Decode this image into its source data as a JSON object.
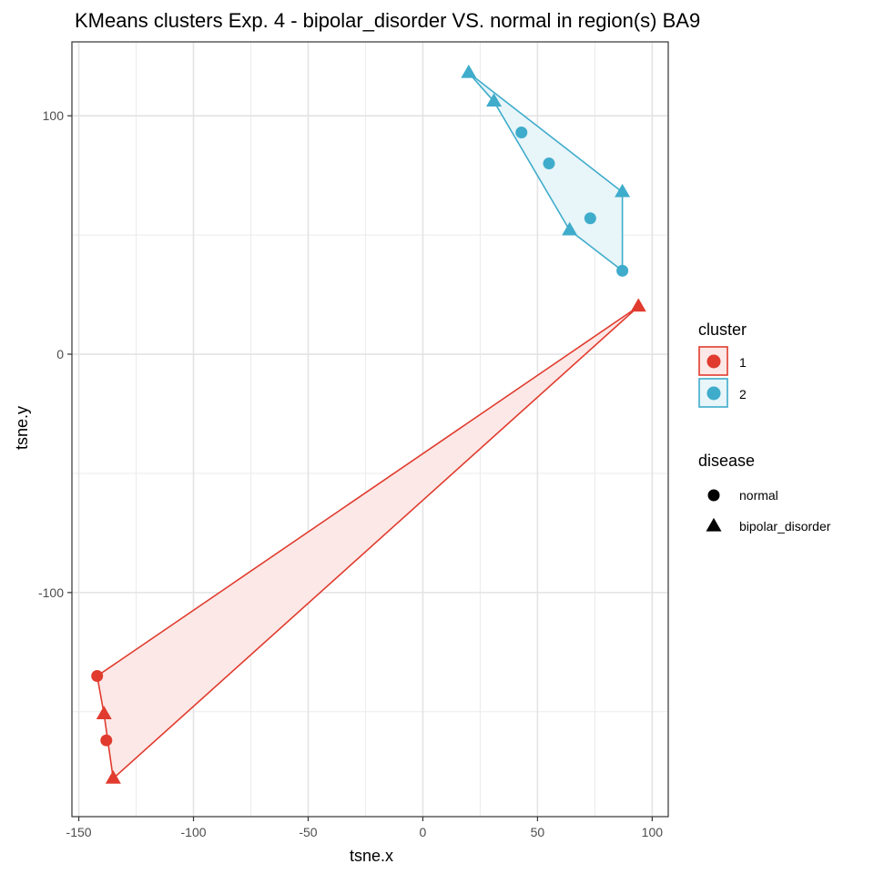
{
  "chart_data": {
    "type": "scatter",
    "title": "KMeans clusters Exp. 4 - bipolar_disorder VS. normal in region(s) BA9",
    "xlabel": "tsne.x",
    "ylabel": "tsne.y",
    "xlim": [
      -153,
      107
    ],
    "ylim": [
      -194,
      131
    ],
    "xticks": [
      -150,
      -100,
      -50,
      0,
      50,
      100
    ],
    "xtick_labels": [
      "-150",
      "-100",
      "-50",
      "0",
      "50",
      "100"
    ],
    "yticks": [
      -100,
      0,
      100
    ],
    "ytick_labels": [
      "-100",
      "0",
      "100"
    ],
    "grid": true,
    "legend_position": "right",
    "clusters": [
      {
        "name": "1",
        "color": "#E03B2E",
        "fill": "#FCE8E6",
        "hull": [
          [
            -142,
            -135
          ],
          [
            94,
            20
          ],
          [
            -135,
            -178
          ],
          [
            -139,
            -151
          ]
        ],
        "points": [
          {
            "x": -142,
            "y": -135,
            "disease": "normal"
          },
          {
            "x": -139,
            "y": -151,
            "disease": "bipolar_disorder"
          },
          {
            "x": -138,
            "y": -162,
            "disease": "normal"
          },
          {
            "x": -135,
            "y": -178,
            "disease": "bipolar_disorder"
          },
          {
            "x": 94,
            "y": 20,
            "disease": "bipolar_disorder"
          }
        ]
      },
      {
        "name": "2",
        "color": "#3FACCB",
        "fill": "#E8F5F9",
        "hull": [
          [
            20,
            118
          ],
          [
            87,
            68
          ],
          [
            87,
            35
          ],
          [
            64,
            52
          ],
          [
            31,
            106
          ]
        ],
        "points": [
          {
            "x": 20,
            "y": 118,
            "disease": "bipolar_disorder"
          },
          {
            "x": 31,
            "y": 106,
            "disease": "bipolar_disorder"
          },
          {
            "x": 43,
            "y": 93,
            "disease": "normal"
          },
          {
            "x": 55,
            "y": 80,
            "disease": "normal"
          },
          {
            "x": 87,
            "y": 68,
            "disease": "bipolar_disorder"
          },
          {
            "x": 73,
            "y": 57,
            "disease": "normal"
          },
          {
            "x": 64,
            "y": 52,
            "disease": "bipolar_disorder"
          },
          {
            "x": 87,
            "y": 35,
            "disease": "normal"
          }
        ]
      }
    ],
    "legend": {
      "cluster_title": "cluster",
      "cluster_entries": [
        "1",
        "2"
      ],
      "disease_title": "disease",
      "disease_entries": [
        {
          "label": "normal",
          "shape": "circle"
        },
        {
          "label": "bipolar_disorder",
          "shape": "triangle"
        }
      ]
    }
  }
}
